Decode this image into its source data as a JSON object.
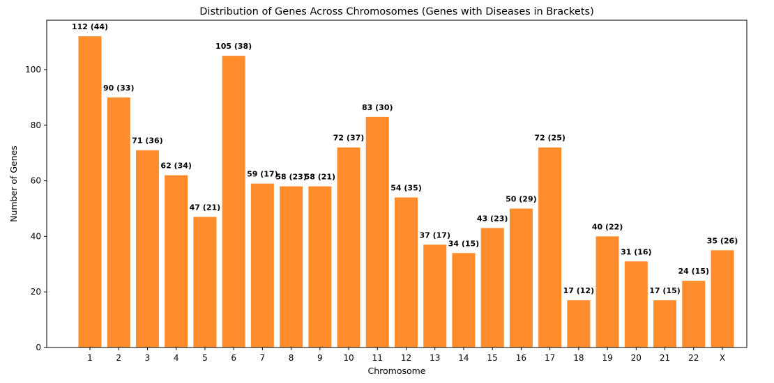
{
  "chart_data": {
    "type": "bar",
    "title": "Distribution of Genes Across Chromosomes (Genes with Diseases in Brackets)",
    "xlabel": "Chromosome",
    "ylabel": "Number of Genes",
    "categories": [
      "1",
      "2",
      "3",
      "4",
      "5",
      "6",
      "7",
      "8",
      "9",
      "10",
      "11",
      "12",
      "13",
      "14",
      "15",
      "16",
      "17",
      "18",
      "19",
      "20",
      "21",
      "22",
      "X"
    ],
    "values": [
      112,
      90,
      71,
      62,
      47,
      105,
      59,
      58,
      58,
      72,
      83,
      54,
      37,
      34,
      43,
      50,
      72,
      17,
      40,
      31,
      17,
      24,
      35
    ],
    "disease_values": [
      44,
      33,
      36,
      34,
      21,
      38,
      17,
      23,
      21,
      37,
      30,
      35,
      17,
      15,
      23,
      29,
      25,
      12,
      22,
      16,
      15,
      15,
      26
    ],
    "data_labels": [
      "112 (44)",
      "90 (33)",
      "71 (36)",
      "62 (34)",
      "47 (21)",
      "105 (38)",
      "59 (17)",
      "58 (23)",
      "58 (21)",
      "72 (37)",
      "83 (30)",
      "54 (35)",
      "37 (17)",
      "34 (15)",
      "43 (23)",
      "50 (29)",
      "72 (25)",
      "17 (12)",
      "40 (22)",
      "31 (16)",
      "17 (15)",
      "24 (15)",
      "35 (26)"
    ],
    "yticks": [
      "0",
      "20",
      "40",
      "60",
      "80",
      "100"
    ],
    "ylim": [
      0,
      117.8
    ],
    "grid": false,
    "bar_color": "#ff8c2b"
  }
}
